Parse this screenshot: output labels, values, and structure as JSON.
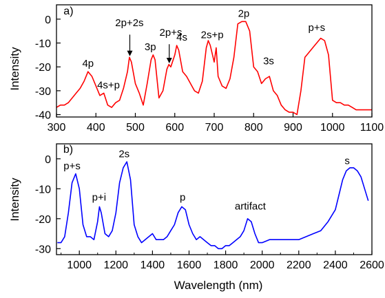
{
  "chart_data": [
    {
      "type": "line",
      "panel_label": "a)",
      "xlabel": "",
      "ylabel": "Intensity",
      "xlim": [
        300,
        1100
      ],
      "ylim": [
        -41,
        6
      ],
      "xticks": [
        300,
        400,
        500,
        600,
        700,
        800,
        900,
        1000,
        1100
      ],
      "yticks": [
        0,
        -10,
        -20,
        -30,
        -40
      ],
      "color": "#ff0000",
      "grid": false,
      "series": [
        {
          "x": [
            300,
            310,
            320,
            330,
            340,
            350,
            360,
            370,
            380,
            390,
            400,
            410,
            420,
            430,
            440,
            450,
            460,
            470,
            480,
            485,
            490,
            500,
            510,
            520,
            530,
            540,
            545,
            550,
            560,
            570,
            580,
            585,
            590,
            600,
            605,
            610,
            620,
            630,
            640,
            650,
            660,
            670,
            680,
            685,
            690,
            700,
            705,
            710,
            720,
            730,
            740,
            750,
            760,
            770,
            780,
            790,
            800,
            810,
            820,
            830,
            840,
            850,
            860,
            870,
            880,
            890,
            900,
            910,
            920,
            930,
            940,
            950,
            960,
            970,
            980,
            990,
            1000,
            1010,
            1020,
            1030,
            1040,
            1050,
            1060,
            1070,
            1080,
            1090,
            1100
          ],
          "y": [
            -37,
            -36,
            -36,
            -35,
            -33,
            -31,
            -29,
            -26,
            -22,
            -24,
            -28,
            -32,
            -31,
            -36,
            -37,
            -35,
            -34,
            -29,
            -22,
            -16,
            -18,
            -27,
            -31,
            -36,
            -27,
            -17,
            -15,
            -17,
            -33,
            -30,
            -21,
            -19,
            -20,
            -15,
            -11,
            -13,
            -22,
            -24,
            -27,
            -30,
            -31,
            -26,
            -12,
            -9,
            -11,
            -18,
            -12,
            -24,
            -28,
            -29,
            -25,
            -16,
            -2,
            -1,
            -1,
            -5,
            -20,
            -22,
            -27,
            -25,
            -24,
            -30,
            -32,
            -36,
            -38,
            -39,
            -39,
            -40,
            -30,
            -16,
            -14,
            -12,
            -10,
            -8,
            -9,
            -15,
            -34,
            -35,
            -35,
            -36,
            -36,
            -37,
            -38,
            -38,
            -38,
            -38,
            -38
          ]
        }
      ],
      "annotations": [
        {
          "text": "a)",
          "x": 318,
          "y": 2
        },
        {
          "text": "4p",
          "x": 380,
          "y": -20
        },
        {
          "text": "4s+p",
          "x": 432,
          "y": -29
        },
        {
          "text": "2p+2s",
          "x": 485,
          "y": -3
        },
        {
          "text": "3p",
          "x": 538,
          "y": -13
        },
        {
          "text": "2p+s",
          "x": 590,
          "y": -7
        },
        {
          "text": "4s",
          "x": 618,
          "y": -9
        },
        {
          "text": "2s+p",
          "x": 695,
          "y": -8
        },
        {
          "text": "2p",
          "x": 775,
          "y": 1
        },
        {
          "text": "3s",
          "x": 838,
          "y": -19
        },
        {
          "text": "p+s",
          "x": 960,
          "y": -5
        }
      ],
      "arrows": [
        {
          "from": [
            486,
            -6.5
          ],
          "to": [
            486,
            -15.5
          ]
        },
        {
          "from": [
            586,
            -10.5
          ],
          "to": [
            586,
            -18.5
          ]
        }
      ]
    },
    {
      "type": "line",
      "panel_label": "b)",
      "xlabel": "Wavelength (nm)",
      "ylabel": "Intensity",
      "xlim": [
        875,
        2600
      ],
      "ylim": [
        -32,
        5
      ],
      "xticks": [
        1000,
        1200,
        1400,
        1600,
        1800,
        2000,
        2200,
        2400,
        2600
      ],
      "xticks_minor": [
        900,
        1100,
        1300,
        1500,
        1700,
        1900,
        2100,
        2300,
        2500
      ],
      "yticks": [
        0,
        -10,
        -20,
        -30
      ],
      "color": "#0000ff",
      "grid": false,
      "series": [
        {
          "x": [
            880,
            900,
            920,
            940,
            960,
            980,
            1000,
            1020,
            1040,
            1060,
            1080,
            1100,
            1110,
            1120,
            1140,
            1160,
            1180,
            1200,
            1220,
            1240,
            1260,
            1280,
            1300,
            1320,
            1340,
            1360,
            1380,
            1400,
            1420,
            1440,
            1460,
            1480,
            1500,
            1520,
            1540,
            1560,
            1580,
            1600,
            1620,
            1640,
            1660,
            1680,
            1700,
            1720,
            1740,
            1760,
            1780,
            1800,
            1820,
            1840,
            1860,
            1880,
            1900,
            1920,
            1940,
            1960,
            1980,
            2000,
            2040,
            2080,
            2120,
            2160,
            2200,
            2240,
            2280,
            2320,
            2360,
            2400,
            2420,
            2440,
            2460,
            2480,
            2500,
            2520,
            2540,
            2560,
            2580
          ],
          "y": [
            -28,
            -28,
            -26,
            -18,
            -8,
            -5,
            -10,
            -22,
            -26,
            -26,
            -27,
            -21,
            -16,
            -18,
            -25,
            -26,
            -24,
            -18,
            -8,
            -3,
            -1,
            -7,
            -22,
            -26,
            -28,
            -27,
            -26,
            -25,
            -27,
            -27,
            -27,
            -26,
            -24,
            -22,
            -18,
            -16,
            -17,
            -22,
            -25,
            -27,
            -26,
            -27,
            -28,
            -29,
            -29,
            -30,
            -30,
            -29,
            -29,
            -28,
            -27,
            -26,
            -24,
            -20,
            -21,
            -25,
            -28,
            -28,
            -27,
            -27,
            -27,
            -27,
            -27,
            -26,
            -25,
            -24,
            -21,
            -17,
            -12,
            -7,
            -4,
            -3,
            -3,
            -4,
            -6,
            -10,
            -14
          ]
        }
      ],
      "annotations": [
        {
          "text": "b)",
          "x": 912,
          "y": 2
        },
        {
          "text": "p+s",
          "x": 960,
          "y": -3.5
        },
        {
          "text": "p+i",
          "x": 1108,
          "y": -14
        },
        {
          "text": "2s",
          "x": 1245,
          "y": 0.5
        },
        {
          "text": "p",
          "x": 1565,
          "y": -14
        },
        {
          "text": "artifact",
          "x": 1935,
          "y": -17
        },
        {
          "text": "s",
          "x": 2465,
          "y": -1.8
        }
      ]
    }
  ]
}
